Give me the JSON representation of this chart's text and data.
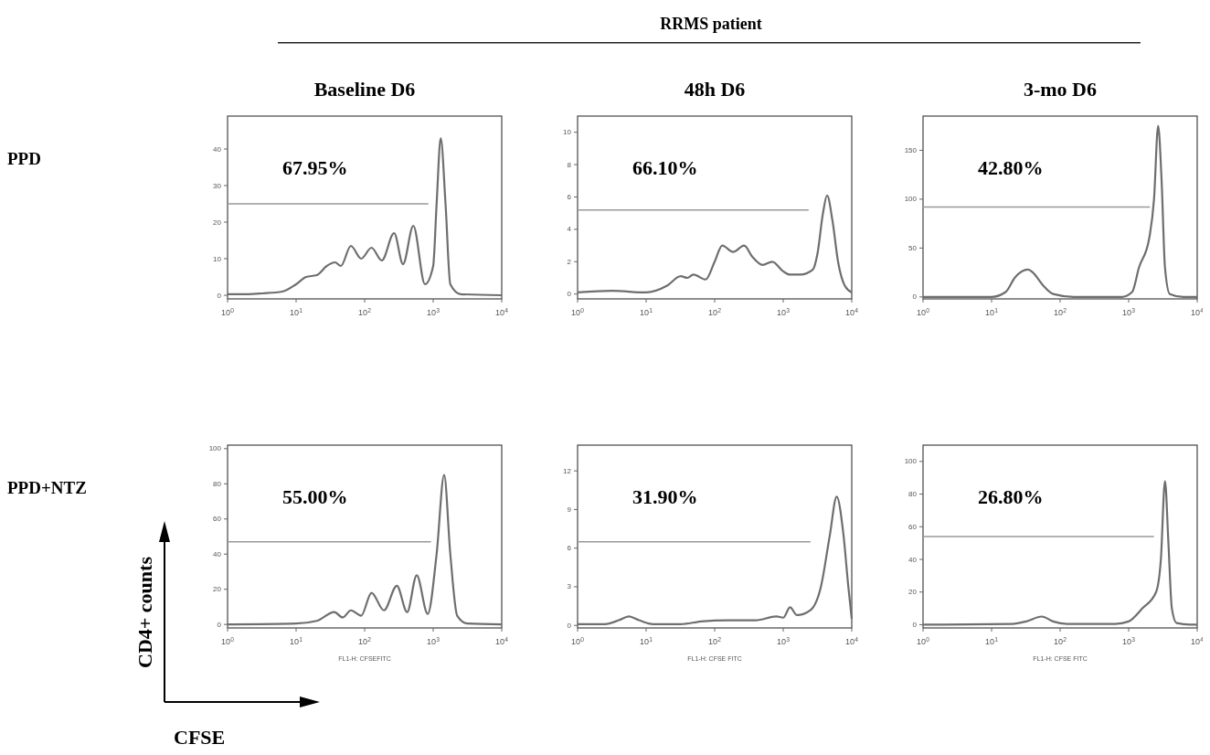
{
  "chart_data": [
    {
      "type": "line",
      "title": "Baseline D6",
      "ylabel": "PPD",
      "log": "x",
      "xlim": [
        1,
        10000
      ],
      "xticks": [
        {
          "value": 1,
          "label": "10$^{0}$"
        },
        {
          "value": 10,
          "label": "10$^{1}$"
        },
        {
          "value": 100,
          "label": "10$^{2}$"
        },
        {
          "value": 1000,
          "label": "10$^{3}$"
        },
        {
          "value": 10000,
          "label": "10$^{4}$"
        }
      ],
      "ylim": [
        -1,
        49
      ],
      "yticks": [
        0,
        10,
        20,
        30,
        40
      ],
      "annotations": [
        "67.95%"
      ],
      "series": [
        {
          "color": "#6e6e6e",
          "x": [
            1,
            2,
            3.2,
            6.3,
            10,
            14,
            20,
            28,
            37,
            45,
            63,
            89,
            126,
            178,
            269,
            363,
            513,
            759,
            1000,
            1122,
            1288,
            1514,
            1778,
            2512,
            10000
          ],
          "values": [
            0.3,
            0.3,
            0.5,
            1,
            3,
            5,
            5.5,
            8,
            9,
            8,
            13.5,
            10,
            13,
            9.5,
            17,
            8.5,
            19,
            3,
            8,
            25,
            43,
            25,
            3,
            0.3,
            0
          ]
        },
        {
          "type": "line",
          "color": "#999999",
          "x": [
            1,
            850
          ],
          "values": [
            25,
            25
          ]
        }
      ]
    },
    {
      "type": "line",
      "title": "48h D6",
      "log": "x",
      "xlim": [
        1,
        10000
      ],
      "xticks": [
        {
          "value": 1,
          "label": "10$^{0}$"
        },
        {
          "value": 10,
          "label": "10$^{1}$"
        },
        {
          "value": 100,
          "label": "10$^{2}$"
        },
        {
          "value": 1000,
          "label": "10$^{3}$"
        },
        {
          "value": 10000,
          "label": "10$^{4}$"
        }
      ],
      "ylim": [
        -0.3,
        11
      ],
      "yticks": [
        0,
        2,
        4,
        6,
        8,
        10
      ],
      "annotations": [
        "66.10%"
      ],
      "series": [
        {
          "color": "#6e6e6e",
          "x": [
            1,
            3.2,
            10,
            20,
            32,
            40,
            49,
            74,
            100,
            129,
            186,
            269,
            355,
            501,
            692,
            1000,
            1259,
            1778,
            2692,
            3162,
            3802,
            4365,
            5248,
            6310,
            7943,
            10000
          ],
          "values": [
            0.1,
            0.2,
            0.1,
            0.5,
            1.1,
            1,
            1.2,
            0.9,
            2,
            3,
            2.6,
            3,
            2.3,
            1.8,
            2,
            1.4,
            1.2,
            1.2,
            1.5,
            2.5,
            5,
            6.1,
            4.5,
            2,
            0.5,
            0.1
          ]
        },
        {
          "type": "line",
          "color": "#999999",
          "x": [
            1,
            2350
          ],
          "values": [
            5.2,
            5.2
          ]
        }
      ]
    },
    {
      "type": "line",
      "title": "3-mo D6",
      "log": "x",
      "xlim": [
        1,
        10000
      ],
      "xticks": [
        {
          "value": 1,
          "label": "10$^{0}$"
        },
        {
          "value": 10,
          "label": "10$^{1}$"
        },
        {
          "value": 100,
          "label": "10$^{2}$"
        },
        {
          "value": 1000,
          "label": "10$^{3}$"
        },
        {
          "value": 10000,
          "label": "10$^{4}$"
        }
      ],
      "ylim": [
        -2,
        185
      ],
      "yticks": [
        0,
        50,
        100,
        150
      ],
      "annotations": [
        "42.80%"
      ],
      "series": [
        {
          "color": "#6e6e6e",
          "x": [
            1,
            10,
            16,
            22,
            34,
            40,
            56,
            79,
            158,
            794,
            1122,
            1413,
            1995,
            2344,
            2692,
            3020,
            3388,
            3981,
            6310,
            10000
          ],
          "values": [
            0,
            0,
            5,
            20,
            28,
            25,
            12,
            3,
            0,
            0,
            5,
            30,
            60,
            100,
            175,
            120,
            30,
            3,
            0,
            0
          ]
        },
        {
          "type": "line",
          "color": "#999999",
          "x": [
            1,
            2040
          ],
          "values": [
            92,
            92
          ]
        }
      ]
    },
    {
      "type": "line",
      "ylabel": "PPD+NTZ",
      "xlabel": "FL1-H: CFSEFITC",
      "log": "x",
      "xlim": [
        1,
        10000
      ],
      "xticks": [
        {
          "value": 1,
          "label": "10$^{0}$"
        },
        {
          "value": 10,
          "label": "10$^{1}$"
        },
        {
          "value": 100,
          "label": "10$^{2}$"
        },
        {
          "value": 1000,
          "label": "10$^{3}$"
        },
        {
          "value": 10000,
          "label": "10$^{4}$"
        }
      ],
      "ylim": [
        -2,
        102
      ],
      "yticks": [
        0,
        20,
        40,
        60,
        80,
        100
      ],
      "annotations": [
        "55.00%"
      ],
      "series": [
        {
          "color": "#6e6e6e",
          "x": [
            1,
            10,
            20,
            36,
            48,
            63,
            89,
            126,
            191,
            295,
            417,
            575,
            832,
            1122,
            1445,
            1778,
            2239,
            3162,
            10000
          ],
          "values": [
            0,
            0.5,
            2,
            7,
            4,
            8,
            5,
            18,
            8,
            22,
            7,
            28,
            6,
            40,
            85,
            40,
            5,
            0.5,
            0
          ]
        },
        {
          "type": "line",
          "color": "#999999",
          "x": [
            1,
            930
          ],
          "values": [
            47,
            47
          ]
        }
      ]
    },
    {
      "type": "line",
      "xlabel": "FL1-H: CFSE FITC",
      "log": "x",
      "xlim": [
        1,
        10000
      ],
      "xticks": [
        {
          "value": 1,
          "label": "10$^{0}$"
        },
        {
          "value": 10,
          "label": "10$^{1}$"
        },
        {
          "value": 100,
          "label": "10$^{2}$"
        },
        {
          "value": 1000,
          "label": "10$^{3}$"
        },
        {
          "value": 10000,
          "label": "10$^{4}$"
        }
      ],
      "ylim": [
        -0.2,
        14
      ],
      "yticks": [
        0,
        3,
        6,
        9,
        12
      ],
      "annotations": [
        "31.90%"
      ],
      "series": [
        {
          "color": "#6e6e6e",
          "x": [
            1,
            2.5,
            4,
            5.6,
            7.9,
            12.6,
            32,
            63,
            158,
            398,
            794,
            1000,
            1259,
            1585,
            2512,
            3548,
            4786,
            6026,
            7586,
            8913,
            10000
          ],
          "values": [
            0.1,
            0.1,
            0.4,
            0.7,
            0.4,
            0.1,
            0.1,
            0.3,
            0.4,
            0.4,
            0.7,
            0.6,
            1.4,
            0.8,
            1.2,
            3,
            7,
            10,
            7,
            3,
            0.5
          ]
        },
        {
          "type": "line",
          "color": "#999999",
          "x": [
            1,
            2500
          ],
          "values": [
            6.5,
            6.5
          ]
        }
      ]
    },
    {
      "type": "line",
      "xlabel": "FL1-H: CFSE FITC",
      "log": "x",
      "xlim": [
        1,
        10000
      ],
      "xticks": [
        {
          "value": 1,
          "label": "10$^{0}$"
        },
        {
          "value": 10,
          "label": "10$^{1}$"
        },
        {
          "value": 100,
          "label": "10$^{2}$"
        },
        {
          "value": 1000,
          "label": "10$^{3}$"
        },
        {
          "value": 10000,
          "label": "10$^{4}$"
        }
      ],
      "ylim": [
        -2,
        110
      ],
      "yticks": [
        0,
        20,
        40,
        60,
        80,
        100
      ],
      "annotations": [
        "26.80%"
      ],
      "series": [
        {
          "color": "#6e6e6e",
          "x": [
            1,
            20,
            32,
            54,
            79,
            126,
            631,
            1000,
            1585,
            2512,
            2951,
            3388,
            3802,
            4266,
            5012,
            7943,
            10000
          ],
          "values": [
            0,
            0.5,
            2,
            5,
            2,
            0.5,
            0.5,
            2,
            10,
            20,
            40,
            88,
            50,
            10,
            1,
            0,
            0
          ]
        },
        {
          "type": "line",
          "color": "#999999",
          "x": [
            1,
            2340
          ],
          "values": [
            54,
            54
          ]
        }
      ]
    },
    {
      "type": "other",
      "title": "RRMS patient",
      "annotations": [
        "CD4+ counts",
        "CFSE"
      ]
    }
  ]
}
